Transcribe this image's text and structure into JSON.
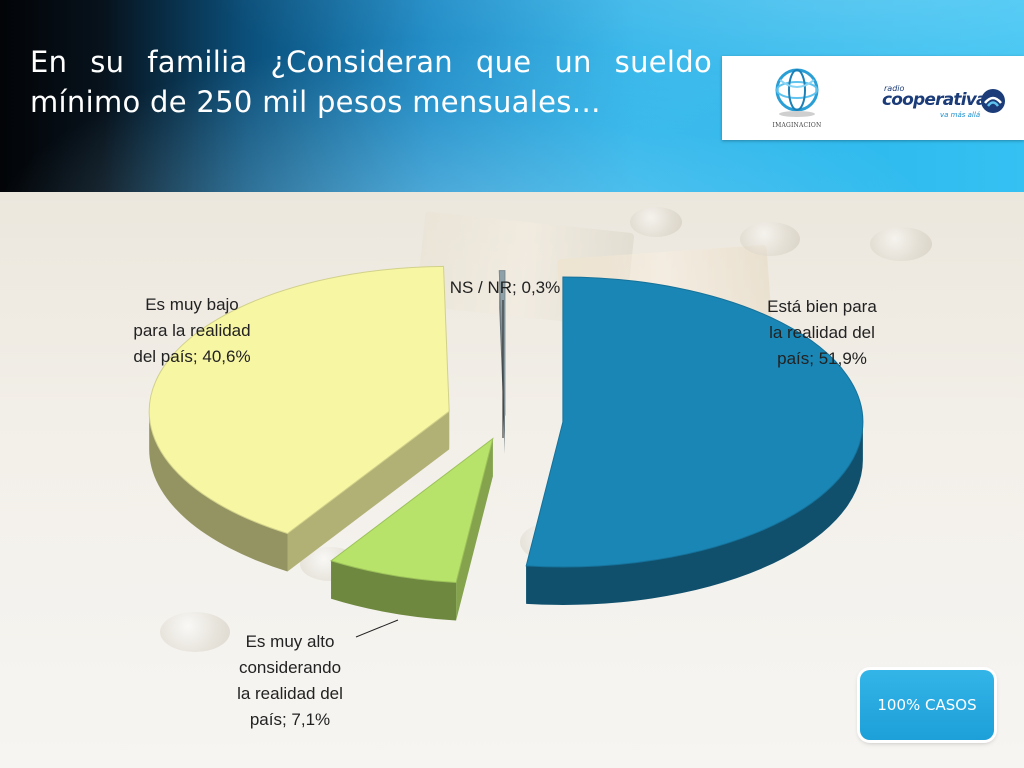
{
  "header": {
    "title": "En su familia ¿Consideran que un sueldo mínimo de 250 mil pesos mensuales…"
  },
  "logos": {
    "imaginacion": "IMAGINACION",
    "cooperativa_radio": "radio",
    "cooperativa_name": "cooperativa",
    "cooperativa_tagline": "va más allá"
  },
  "chart_data": {
    "type": "pie",
    "title": "",
    "slices": [
      {
        "label": "Está bien para la realidad del país; 51,9%",
        "category": "Está bien para la realidad del país",
        "value": 51.9,
        "color": "#1a86b5"
      },
      {
        "label": "Es muy alto considerando la realidad del país; 7,1%",
        "category": "Es muy alto considerando la realidad del país",
        "value": 7.1,
        "color": "#b7e36a"
      },
      {
        "label": "Es muy bajo para la realidad del país; 40,6%",
        "category": "Es muy bajo para la realidad del país",
        "value": 40.6,
        "color": "#f7f6a3"
      },
      {
        "label": "NS / NR; 0,3%",
        "category": "NS / NR",
        "value": 0.3,
        "color": "#8fa1a8"
      }
    ],
    "label_lines": {
      "slice_0": [
        "Está bien para",
        "la realidad del",
        "país; 51,9%"
      ],
      "slice_1": [
        "Es muy alto",
        "considerando",
        "la realidad del",
        "país; 7,1%"
      ],
      "slice_2": [
        "Es muy bajo",
        "para la realidad",
        "del país; 40,6%"
      ],
      "slice_3": [
        "NS / NR; 0,3%"
      ]
    },
    "legend": "none",
    "style": "3d-exploded"
  },
  "badge": {
    "text": "100% CASOS"
  }
}
